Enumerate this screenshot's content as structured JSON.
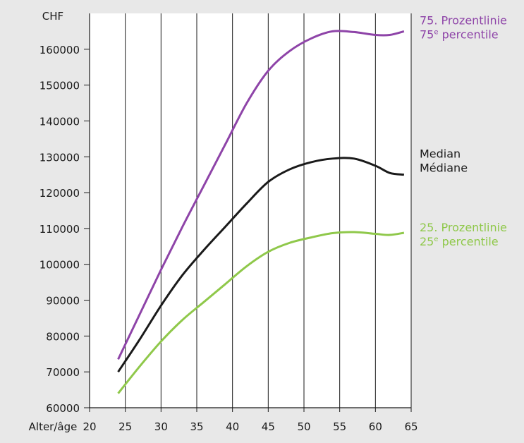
{
  "chart_data": {
    "type": "line",
    "ylabel": "CHF",
    "xlabel": "Alter/âge",
    "xlim": [
      20,
      65
    ],
    "ylim": [
      60000,
      170000
    ],
    "xticks": [
      "20",
      "25",
      "30",
      "35",
      "40",
      "45",
      "50",
      "55",
      "60",
      "65"
    ],
    "yticks": [
      "60000",
      "70000",
      "80000",
      "90000",
      "100000",
      "110000",
      "120000",
      "130000",
      "140000",
      "150000",
      "160000"
    ],
    "grid": true,
    "series": [
      {
        "name": "75. Prozentlinie",
        "name2": "75e percentile",
        "sup_base": "75",
        "sup": "e",
        "sup_rest": " percentile",
        "color": "#8e44a8",
        "x": [
          24,
          27,
          30,
          33,
          36,
          39,
          42,
          45,
          48,
          51,
          54,
          57,
          60,
          62,
          64
        ],
        "y": [
          73500,
          86000,
          98500,
          110500,
          122000,
          133500,
          145000,
          154000,
          159500,
          163000,
          165000,
          164800,
          164000,
          164000,
          165000
        ]
      },
      {
        "name": "Median",
        "name2": "Médiane",
        "color": "#1a1a1a",
        "x": [
          24,
          27,
          30,
          33,
          36,
          39,
          42,
          45,
          48,
          51,
          54,
          57,
          60,
          62,
          64
        ],
        "y": [
          70000,
          79000,
          88500,
          97000,
          104000,
          110500,
          117000,
          123000,
          126500,
          128500,
          129500,
          129500,
          127500,
          125500,
          125000
        ]
      },
      {
        "name": "25. Prozentlinie",
        "name2": "25e percentile",
        "sup_base": "25",
        "sup": "e",
        "sup_rest": " percentile",
        "color": "#8fc84a",
        "x": [
          24,
          27,
          30,
          33,
          36,
          39,
          42,
          45,
          48,
          51,
          54,
          57,
          60,
          62,
          64
        ],
        "y": [
          64000,
          71500,
          78500,
          84500,
          89500,
          94500,
          99500,
          103500,
          106000,
          107500,
          108700,
          109000,
          108500,
          108200,
          108800
        ]
      }
    ]
  }
}
